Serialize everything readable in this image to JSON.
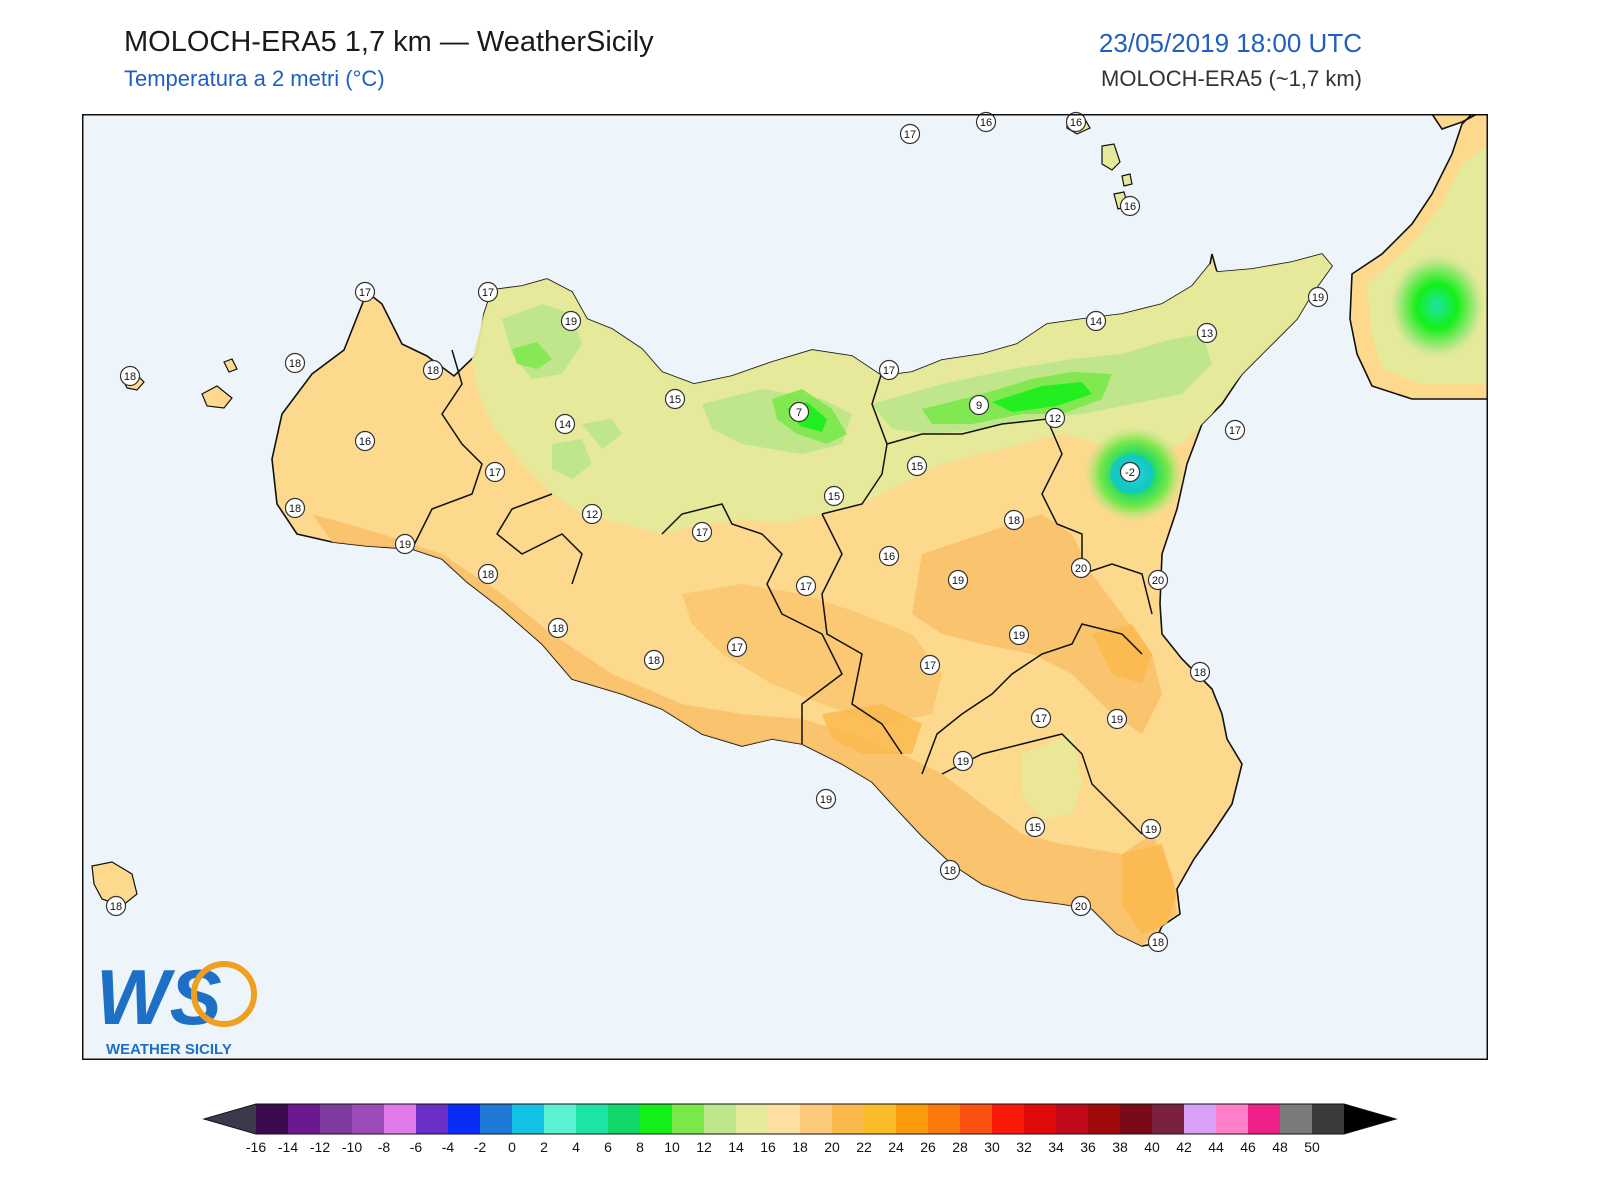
{
  "header": {
    "title": "MOLOCH-ERA5 1,7 km — WeatherSicily",
    "subtitle": "Temperatura a 2 metri (°C)",
    "datetime": "23/05/2019 18:00 UTC",
    "model": "MOLOCH-ERA5 (~1,7 km)"
  },
  "logo": {
    "letters": "WS",
    "text": "WEATHER SICILY"
  },
  "colors": {
    "sea": "#edf5fa",
    "land_warm": "#fdd98e",
    "land_orange": "#f9c06a",
    "land_yellow_green": "#e5ea9a",
    "land_green": "#bde68a",
    "land_bright_green": "#3ee85a",
    "accent": "#1f5fbf"
  },
  "stations": [
    {
      "value": "17"
    },
    {
      "value": "16"
    },
    {
      "value": "16"
    },
    {
      "value": "16"
    },
    {
      "value": "17"
    },
    {
      "value": "17"
    },
    {
      "value": "19"
    },
    {
      "value": "19"
    },
    {
      "value": "14"
    },
    {
      "value": "13"
    },
    {
      "value": "17"
    },
    {
      "value": "18"
    },
    {
      "value": "18"
    },
    {
      "value": "18"
    },
    {
      "value": "15"
    },
    {
      "value": "7"
    },
    {
      "value": "9"
    },
    {
      "value": "12"
    },
    {
      "value": "14"
    },
    {
      "value": "16"
    },
    {
      "value": "17"
    },
    {
      "value": "15"
    },
    {
      "value": "-2"
    },
    {
      "value": "17"
    },
    {
      "value": "15"
    },
    {
      "value": "12"
    },
    {
      "value": "18"
    },
    {
      "value": "17"
    },
    {
      "value": "19"
    },
    {
      "value": "16"
    },
    {
      "value": "18"
    },
    {
      "value": "19"
    },
    {
      "value": "20"
    },
    {
      "value": "17"
    },
    {
      "value": "20"
    },
    {
      "value": "18"
    },
    {
      "value": "17"
    },
    {
      "value": "18"
    },
    {
      "value": "18"
    },
    {
      "value": "19"
    },
    {
      "value": "17"
    },
    {
      "value": "17"
    },
    {
      "value": "19"
    },
    {
      "value": "19"
    },
    {
      "value": "19"
    },
    {
      "value": "18"
    },
    {
      "value": "15"
    },
    {
      "value": "19"
    },
    {
      "value": "18"
    },
    {
      "value": "20"
    },
    {
      "value": "18"
    },
    {
      "value": "18"
    }
  ],
  "colorbar": {
    "ticks": [
      "-16",
      "-14",
      "-12",
      "-10",
      "-8",
      "-6",
      "-4",
      "-2",
      "0",
      "2",
      "4",
      "6",
      "8",
      "10",
      "12",
      "14",
      "16",
      "18",
      "20",
      "22",
      "24",
      "26",
      "28",
      "30",
      "32",
      "34",
      "36",
      "38",
      "40",
      "42",
      "44",
      "46",
      "48",
      "50"
    ],
    "colors": [
      "#3c0a4f",
      "#6a1a8e",
      "#7f3aa0",
      "#9c4cb8",
      "#e07ae8",
      "#6b2fc5",
      "#0a2df5",
      "#1e7ad6",
      "#12c2e4",
      "#5af2d2",
      "#1ce3a6",
      "#10d86a",
      "#13f018",
      "#7be84a",
      "#bde68a",
      "#e5ea9a",
      "#fde0a0",
      "#fbc97a",
      "#fbb84b",
      "#fbbc2a",
      "#fb9a0a",
      "#fb7a0a",
      "#fb5010",
      "#fb1a0a",
      "#e00a0a",
      "#c00a1a",
      "#a00a0a",
      "#7a0a1a",
      "#7a2040",
      "#d8a0f8",
      "#ff80c8",
      "#f0208a",
      "#7a7a7a",
      "#3a3a3a"
    ]
  }
}
